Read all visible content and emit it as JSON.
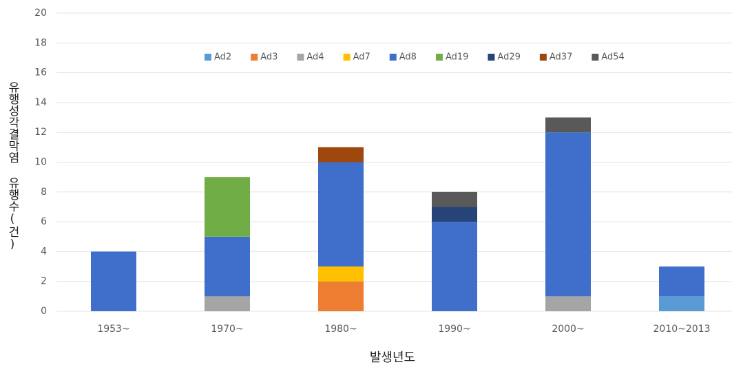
{
  "chart_data": {
    "type": "stacked_bar",
    "x_label": "발생년도",
    "y_label": "유행성각결막염 유행수(건)",
    "categories": [
      "1953~",
      "1970~",
      "1980~",
      "1990~",
      "2000~",
      "2010~2013"
    ],
    "series": [
      {
        "name": "Ad2",
        "color": "#5b9bd5",
        "values": [
          0,
          0,
          0,
          0,
          0,
          1
        ]
      },
      {
        "name": "Ad3",
        "color": "#ed7d31",
        "values": [
          0,
          0,
          2,
          0,
          0,
          0
        ]
      },
      {
        "name": "Ad4",
        "color": "#a5a5a5",
        "values": [
          0,
          1,
          0,
          0,
          1,
          0
        ]
      },
      {
        "name": "Ad7",
        "color": "#ffc000",
        "values": [
          0,
          0,
          1,
          0,
          0,
          0
        ]
      },
      {
        "name": "Ad8",
        "color": "#3f6fcb",
        "values": [
          4,
          4,
          7,
          6,
          11,
          2
        ]
      },
      {
        "name": "Ad19",
        "color": "#70ad47",
        "values": [
          0,
          4,
          0,
          0,
          0,
          0
        ]
      },
      {
        "name": "Ad29",
        "color": "#264478",
        "values": [
          0,
          0,
          0,
          1,
          0,
          0
        ]
      },
      {
        "name": "Ad37",
        "color": "#9e480e",
        "values": [
          0,
          0,
          1,
          0,
          0,
          0
        ]
      },
      {
        "name": "Ad54",
        "color": "#595959",
        "values": [
          0,
          0,
          0,
          1,
          1,
          0
        ]
      }
    ],
    "ylim": [
      0,
      20
    ],
    "yticks": [
      0,
      2,
      4,
      6,
      8,
      10,
      12,
      14,
      16,
      18,
      20
    ],
    "grid": true,
    "legend": "top"
  }
}
